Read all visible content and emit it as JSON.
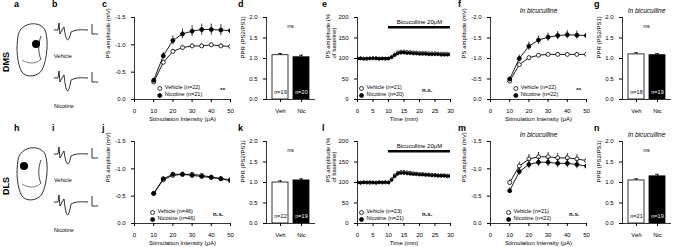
{
  "rows": [
    {
      "label": "DMS",
      "panels": [
        "a",
        "b"
      ],
      "trace_labels": [
        "Vehicle",
        "Nicotine"
      ]
    },
    {
      "label": "DLS",
      "panels": [
        "h",
        "i"
      ],
      "trace_labels": [
        "Vehicle",
        "Nicotine"
      ]
    }
  ],
  "chart_data": [
    {
      "row": "DMS",
      "panel": "c",
      "type": "line",
      "xlabel": "Stimulation Intensity (μA)",
      "ylabel": "PS amplitude (mV)",
      "x": [
        10,
        15,
        20,
        25,
        30,
        35,
        40,
        45,
        50
      ],
      "xlim": [
        0,
        50
      ],
      "xticks": [
        0,
        10,
        20,
        30,
        40,
        50
      ],
      "ylim": [
        0,
        -1.5
      ],
      "yticks": [
        {
          "value": 0,
          "label": "0.0"
        },
        -0.5,
        {
          "value": -1,
          "label": "-1.0"
        },
        -1.5
      ],
      "legend": "bottom-right",
      "significance": "**",
      "series": [
        {
          "name": "Vehicle (n=22)",
          "color": "#000000",
          "marker": "open circle",
          "values": [
            -0.32,
            -0.68,
            -0.88,
            -0.95,
            -0.98,
            -0.98,
            -1.0,
            -0.98,
            -0.97
          ],
          "errors": [
            0.03,
            0.04,
            0.04,
            0.04,
            0.04,
            0.04,
            0.04,
            0.04,
            0.04
          ]
        },
        {
          "name": "Nicotine (n=21)",
          "color": "#000000",
          "marker": "filled circle",
          "values": [
            -0.35,
            -0.8,
            -1.08,
            -1.2,
            -1.25,
            -1.28,
            -1.28,
            -1.27,
            -1.26
          ],
          "errors": [
            0.04,
            0.06,
            0.08,
            0.09,
            0.1,
            0.1,
            0.1,
            0.1,
            0.1
          ]
        }
      ]
    },
    {
      "row": "DMS",
      "panel": "d",
      "type": "bar",
      "ylabel": "PPR (PS2/PS1)",
      "categories": [
        "Veh",
        "Nic"
      ],
      "values": [
        1.08,
        1.03
      ],
      "errors": [
        0.04,
        0.05
      ],
      "colors": [
        "#ffffff",
        "#000000"
      ],
      "n_labels": [
        "n=19",
        "n=20"
      ],
      "ylim": [
        0,
        2
      ],
      "yticks": [
        {
          "value": 0,
          "label": "0.0"
        },
        0.5,
        {
          "value": 1,
          "label": "1.0"
        },
        1.5,
        {
          "value": 2,
          "label": "2.0"
        }
      ],
      "significance": "ns"
    },
    {
      "row": "DMS",
      "panel": "e",
      "type": "line",
      "xlabel": "Time (min)",
      "ylabel": "PS amplitude (% of baseline)",
      "x": [
        0,
        1,
        2,
        3,
        4,
        5,
        6,
        7,
        8,
        9,
        10,
        11,
        12,
        13,
        14,
        15,
        16,
        17,
        18,
        19,
        20,
        21,
        22,
        23,
        24,
        25,
        26,
        27,
        28,
        29,
        30
      ],
      "xlim": [
        0,
        30
      ],
      "xticks": [
        0,
        5,
        10,
        15,
        20,
        25,
        30
      ],
      "ylim": [
        0,
        200
      ],
      "yticks": [
        0,
        50,
        100,
        150,
        200
      ],
      "legend": "bottom-left",
      "significance": "n.s.",
      "treatment": {
        "text": "Bicuculline 20μM",
        "start": 10,
        "end": 30
      },
      "series": [
        {
          "name": "Vehicle (n=21)",
          "color": "#000000",
          "marker": "open circle",
          "values": [
            100,
            101,
            100,
            99,
            100,
            100,
            101,
            100,
            100,
            99,
            100,
            104,
            110,
            115,
            117,
            117,
            116,
            116,
            115,
            115,
            114,
            114,
            114,
            113,
            113,
            113,
            112,
            112,
            112,
            112,
            111
          ]
        },
        {
          "name": "Nicotine (n=20)",
          "color": "#000000",
          "marker": "filled circle",
          "values": [
            100,
            100,
            99,
            100,
            100,
            101,
            100,
            99,
            100,
            100,
            100,
            103,
            108,
            112,
            114,
            114,
            113,
            113,
            112,
            112,
            111,
            111,
            111,
            110,
            110,
            110,
            110,
            109,
            109,
            109,
            109
          ]
        }
      ]
    },
    {
      "row": "DMS",
      "panel": "f",
      "type": "line",
      "title": "In bicuculline",
      "xlabel": "Stimulation Intensity (μA)",
      "ylabel": "PS amplitude (mV)",
      "x": [
        10,
        15,
        20,
        25,
        30,
        35,
        40,
        45,
        50
      ],
      "xlim": [
        0,
        50
      ],
      "xticks": [
        0,
        10,
        20,
        30,
        40,
        50
      ],
      "ylim": [
        0,
        -2
      ],
      "yticks": [
        {
          "value": 0,
          "label": "0.0"
        },
        -0.5,
        {
          "value": -1,
          "label": "-1.0"
        },
        -1.5,
        {
          "value": -2,
          "label": "-2.0"
        }
      ],
      "legend": "bottom-right",
      "significance": "**",
      "series": [
        {
          "name": "Vehicle (n=22)",
          "color": "#000000",
          "marker": "open circle",
          "values": [
            -0.45,
            -0.85,
            -1.02,
            -1.08,
            -1.1,
            -1.1,
            -1.1,
            -1.1,
            -1.1
          ],
          "errors": [
            0.04,
            0.04,
            0.04,
            0.04,
            0.04,
            0.04,
            0.04,
            0.04,
            0.04
          ]
        },
        {
          "name": "Nicotine (n=22)",
          "color": "#000000",
          "marker": "filled circle",
          "values": [
            -0.5,
            -1.0,
            -1.3,
            -1.45,
            -1.52,
            -1.56,
            -1.58,
            -1.57,
            -1.56
          ],
          "errors": [
            0.04,
            0.08,
            0.1,
            0.1,
            0.1,
            0.1,
            0.1,
            0.1,
            0.1
          ]
        }
      ]
    },
    {
      "row": "DMS",
      "panel": "g",
      "type": "bar",
      "title": "In bicuculline",
      "ylabel": "PPR (PS2/PS1)",
      "categories": [
        "Veh",
        "Nic"
      ],
      "values": [
        1.1,
        1.08
      ],
      "errors": [
        0.04,
        0.04
      ],
      "colors": [
        "#ffffff",
        "#000000"
      ],
      "n_labels": [
        "n=18",
        "n=19"
      ],
      "ylim": [
        0,
        2
      ],
      "yticks": [
        {
          "value": 0,
          "label": "0.0"
        },
        0.5,
        {
          "value": 1,
          "label": "1.0"
        },
        1.5,
        {
          "value": 2,
          "label": "2.0"
        }
      ],
      "significance": "ns"
    },
    {
      "row": "DLS",
      "panel": "j",
      "type": "line",
      "xlabel": "Stimulation Intensity (μA)",
      "ylabel": "PS amplitude (mV)",
      "x": [
        10,
        15,
        20,
        25,
        30,
        35,
        40,
        45,
        50
      ],
      "xlim": [
        0,
        50
      ],
      "xticks": [
        0,
        10,
        20,
        30,
        40,
        50
      ],
      "ylim": [
        0,
        -1.5
      ],
      "yticks": [
        {
          "value": 0,
          "label": "0.0"
        },
        -0.5,
        {
          "value": -1,
          "label": "-1.0"
        },
        -1.5
      ],
      "legend": "bottom-right",
      "significance": "n.s.",
      "series": [
        {
          "name": "Vehicle (n=46)",
          "color": "#000000",
          "marker": "open circle",
          "values": [
            -0.55,
            -0.8,
            -0.88,
            -0.9,
            -0.9,
            -0.88,
            -0.85,
            -0.82,
            -0.78
          ],
          "errors": [
            0.03,
            0.03,
            0.03,
            0.03,
            0.03,
            0.03,
            0.03,
            0.03,
            0.03
          ]
        },
        {
          "name": "Nicotine (n=46)",
          "color": "#000000",
          "marker": "filled circle",
          "values": [
            -0.55,
            -0.82,
            -0.9,
            -0.9,
            -0.88,
            -0.86,
            -0.84,
            -0.82,
            -0.8
          ],
          "errors": [
            0.03,
            0.03,
            0.03,
            0.03,
            0.03,
            0.03,
            0.03,
            0.03,
            0.03
          ]
        }
      ]
    },
    {
      "row": "DLS",
      "panel": "k",
      "type": "bar",
      "ylabel": "PPR (PS2/PS1)",
      "categories": [
        "Veh",
        "Nic"
      ],
      "values": [
        1.0,
        1.05
      ],
      "errors": [
        0.04,
        0.04
      ],
      "colors": [
        "#ffffff",
        "#000000"
      ],
      "n_labels": [
        "n=22",
        "n=19"
      ],
      "ylim": [
        0,
        2
      ],
      "yticks": [
        {
          "value": 0,
          "label": "0.0"
        },
        0.5,
        {
          "value": 1,
          "label": "1.0"
        },
        1.5,
        {
          "value": 2,
          "label": "2.0"
        }
      ],
      "significance": "ns"
    },
    {
      "row": "DLS",
      "panel": "l",
      "type": "line",
      "xlabel": "Time (min)",
      "ylabel": "PS amplitude (% of baseline)",
      "x": [
        0,
        1,
        2,
        3,
        4,
        5,
        6,
        7,
        8,
        9,
        10,
        11,
        12,
        13,
        14,
        15,
        16,
        17,
        18,
        19,
        20,
        21,
        22,
        23,
        24,
        25,
        26,
        27,
        28,
        29,
        30
      ],
      "xlim": [
        0,
        30
      ],
      "xticks": [
        0,
        5,
        10,
        15,
        20,
        25,
        30
      ],
      "ylim": [
        0,
        200
      ],
      "yticks": [
        0,
        50,
        100,
        150,
        200
      ],
      "legend": "bottom-left",
      "significance": "n.s.",
      "treatment": {
        "text": "Bicuculline 20μM",
        "start": 10,
        "end": 30
      },
      "series": [
        {
          "name": "Vehicle (n=23)",
          "color": "#000000",
          "marker": "open circle",
          "values": [
            100,
            100,
            101,
            100,
            99,
            100,
            100,
            101,
            100,
            100,
            100,
            108,
            118,
            124,
            126,
            126,
            125,
            124,
            123,
            122,
            121,
            121,
            120,
            120,
            119,
            119,
            118,
            118,
            118,
            117,
            117
          ]
        },
        {
          "name": "Nicotine (n=21)",
          "color": "#000000",
          "marker": "filled circle",
          "values": [
            100,
            99,
            100,
            100,
            101,
            100,
            99,
            100,
            100,
            101,
            100,
            106,
            115,
            121,
            123,
            123,
            122,
            121,
            120,
            120,
            119,
            119,
            118,
            118,
            117,
            117,
            116,
            116,
            116,
            115,
            115
          ]
        }
      ]
    },
    {
      "row": "DLS",
      "panel": "m",
      "type": "line",
      "title": "In bicuculline",
      "xlabel": "Stimulation Intensity (μA)",
      "ylabel": "PS amplitude (mV)",
      "x": [
        10,
        15,
        20,
        25,
        30,
        35,
        40,
        45,
        50
      ],
      "xlim": [
        0,
        50
      ],
      "xticks": [
        0,
        10,
        20,
        30,
        40,
        50
      ],
      "ylim": [
        0,
        -1.5
      ],
      "yticks": [
        {
          "value": 0,
          "label": "0.0"
        },
        -0.5,
        {
          "value": -1,
          "label": "-1.0"
        },
        -1.5
      ],
      "legend": "bottom-right",
      "significance": "n.s.",
      "series": [
        {
          "name": "Vehicle (n=21)",
          "color": "#000000",
          "marker": "open circle",
          "values": [
            -0.75,
            -1.05,
            -1.18,
            -1.22,
            -1.22,
            -1.2,
            -1.2,
            -1.18,
            -1.15
          ],
          "errors": [
            0.05,
            0.07,
            0.08,
            0.08,
            0.08,
            0.08,
            0.08,
            0.08,
            0.08
          ]
        },
        {
          "name": "Nicotine (n=22)",
          "color": "#000000",
          "marker": "filled circle",
          "values": [
            -0.6,
            -0.95,
            -1.08,
            -1.12,
            -1.12,
            -1.1,
            -1.1,
            -1.08,
            -1.05
          ],
          "errors": [
            0.05,
            0.07,
            0.08,
            0.08,
            0.08,
            0.08,
            0.08,
            0.08,
            0.08
          ]
        }
      ]
    },
    {
      "row": "DLS",
      "panel": "n",
      "type": "bar",
      "title": "In bicuculline",
      "ylabel": "PPR (PS2/PS1)",
      "categories": [
        "Veh",
        "Nic"
      ],
      "values": [
        1.05,
        1.15
      ],
      "errors": [
        0.04,
        0.05
      ],
      "colors": [
        "#ffffff",
        "#000000"
      ],
      "n_labels": [
        "n=21",
        "n=19"
      ],
      "ylim": [
        0,
        2
      ],
      "yticks": [
        {
          "value": 0,
          "label": "0.0"
        },
        0.5,
        {
          "value": 1,
          "label": "1.0"
        },
        1.5,
        {
          "value": 2,
          "label": "2.0"
        }
      ],
      "significance": "ns"
    }
  ]
}
